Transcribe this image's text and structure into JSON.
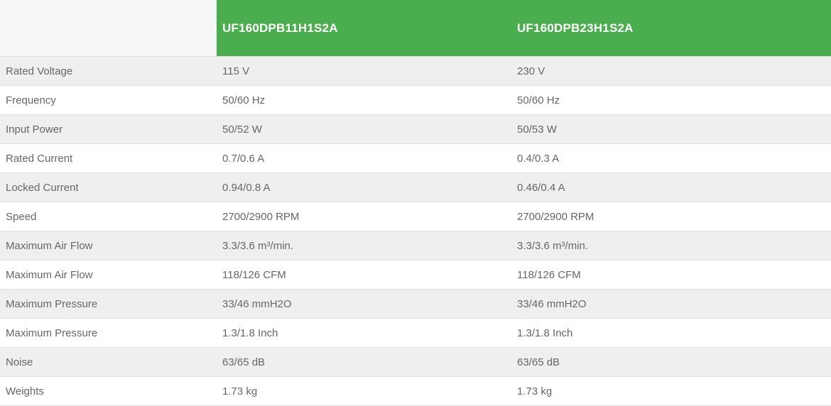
{
  "colors": {
    "header_green": "#4bae4e",
    "header_text": "#ffffff",
    "row_stripe": "#efefef",
    "row_white": "#ffffff",
    "corner_bg": "#f7f7f7",
    "border": "#e0e0e0",
    "body_text": "#666666"
  },
  "table": {
    "header": {
      "corner": "",
      "product1": "UF160DPB11H1S2A",
      "product2": "UF160DPB23H1S2A"
    },
    "rows": [
      {
        "label": "Rated Voltage",
        "v1": "115 V",
        "v2": "230 V"
      },
      {
        "label": "Frequency",
        "v1": "50/60 Hz",
        "v2": "50/60 Hz"
      },
      {
        "label": "Input Power",
        "v1": "50/52 W",
        "v2": "50/53 W"
      },
      {
        "label": "Rated Current",
        "v1": "0.7/0.6 A",
        "v2": "0.4/0.3 A"
      },
      {
        "label": "Locked Current",
        "v1": "0.94/0.8 A",
        "v2": "0.46/0.4 A"
      },
      {
        "label": "Speed",
        "v1": "2700/2900 RPM",
        "v2": "2700/2900 RPM"
      },
      {
        "label": "Maximum Air Flow",
        "v1": "3.3/3.6 m³/min.",
        "v2": "3.3/3.6 m³/min."
      },
      {
        "label": "Maximum Air Flow",
        "v1": "118/126 CFM",
        "v2": "118/126 CFM"
      },
      {
        "label": "Maximum Pressure",
        "v1": "33/46 mmH2O",
        "v2": "33/46 mmH2O"
      },
      {
        "label": "Maximum Pressure",
        "v1": "1.3/1.8 Inch",
        "v2": "1.3/1.8 Inch"
      },
      {
        "label": "Noise",
        "v1": "63/65 dB",
        "v2": "63/65 dB"
      },
      {
        "label": "Weights",
        "v1": "1.73 kg",
        "v2": "1.73 kg"
      }
    ]
  }
}
